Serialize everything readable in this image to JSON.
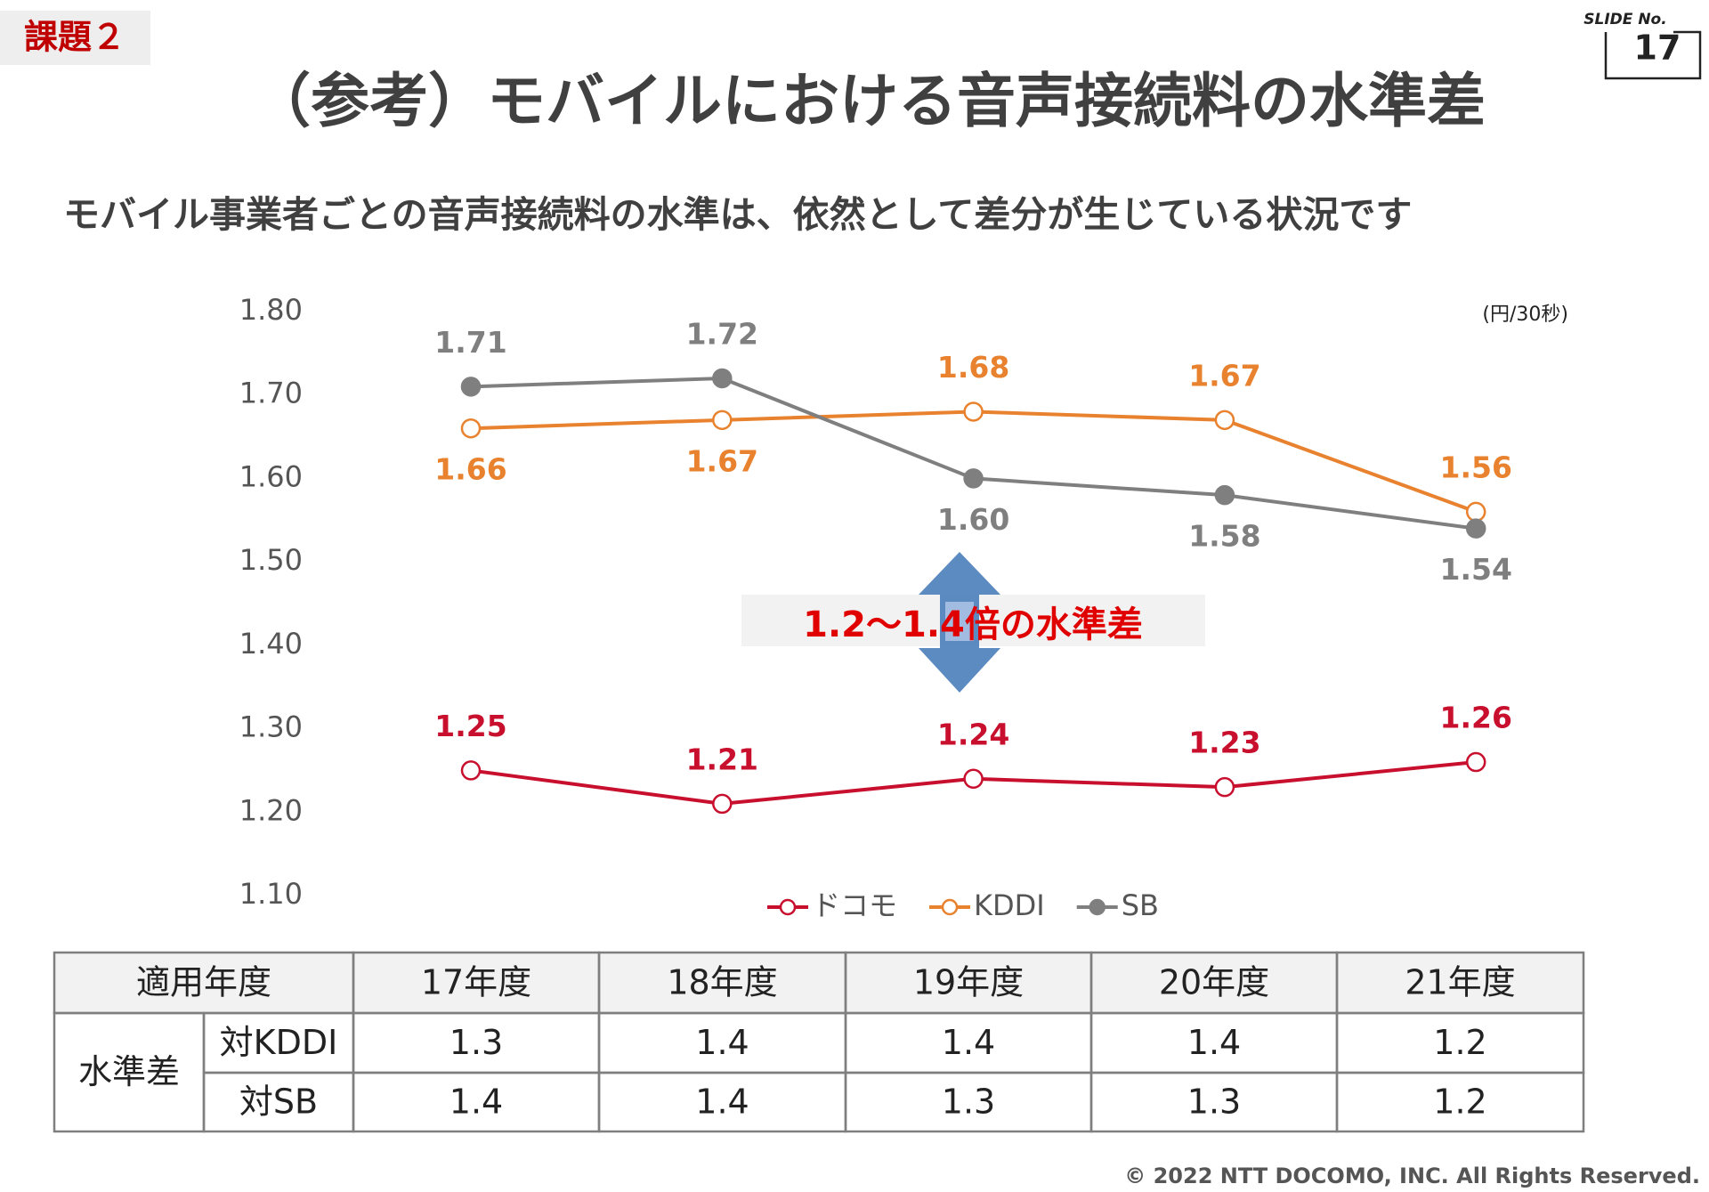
{
  "header": {
    "tag": "課題２",
    "slide_label": "SLIDE No.",
    "slide_number": "17",
    "title": "（参考）モバイルにおける音声接続料の水準差",
    "subtitle": "モバイル事業者ごとの音声接続料の水準は、依然として差分が生じている状況です"
  },
  "chart_data": {
    "type": "line",
    "unit": "(円/30秒)",
    "annotation": "1.2～1.4倍の水準差",
    "categories": [
      null,
      null,
      null,
      null,
      null
    ],
    "ylim": [
      1.1,
      1.8
    ],
    "yticks": [
      {
        "value": 1.1,
        "label": "1.10"
      },
      {
        "value": 1.2,
        "label": "1.20"
      },
      {
        "value": 1.3,
        "label": "1.30"
      },
      {
        "value": 1.4,
        "label": "1.40"
      },
      {
        "value": 1.5,
        "label": "1.50"
      },
      {
        "value": 1.6,
        "label": "1.60"
      },
      {
        "value": 1.7,
        "label": "1.70"
      },
      {
        "value": 1.8,
        "label": "1.80"
      }
    ],
    "grid": false,
    "legend": "bottom",
    "series": [
      {
        "name": "ドコモ",
        "color": "#c8102e",
        "values": [
          1.25,
          1.21,
          1.24,
          1.23,
          1.26
        ],
        "value_labels": [
          "1.25",
          "1.21",
          "1.24",
          "1.23",
          "1.26"
        ]
      },
      {
        "name": "KDDI",
        "color": "#e8822e",
        "values": [
          1.66,
          1.67,
          1.68,
          1.67,
          1.56
        ],
        "value_labels": [
          "1.66",
          "1.67",
          "1.68",
          "1.67",
          "1.56"
        ]
      },
      {
        "name": "SB",
        "color": "#7f7f7f",
        "values": [
          1.71,
          1.72,
          1.6,
          1.58,
          1.54
        ],
        "value_labels": [
          "1.71",
          "1.72",
          "1.60",
          "1.58",
          "1.54"
        ]
      }
    ]
  },
  "table": {
    "header": [
      "適用年度",
      "17年度",
      "18年度",
      "19年度",
      "20年度",
      "21年度"
    ],
    "group": "水準差",
    "rows": [
      [
        "対KDDI",
        1.3,
        1.4,
        1.4,
        1.4,
        1.2
      ],
      [
        "対SB",
        1.4,
        1.4,
        1.3,
        1.3,
        1.2
      ]
    ]
  },
  "footer": "© 2022 NTT DOCOMO, INC. All Rights Reserved."
}
